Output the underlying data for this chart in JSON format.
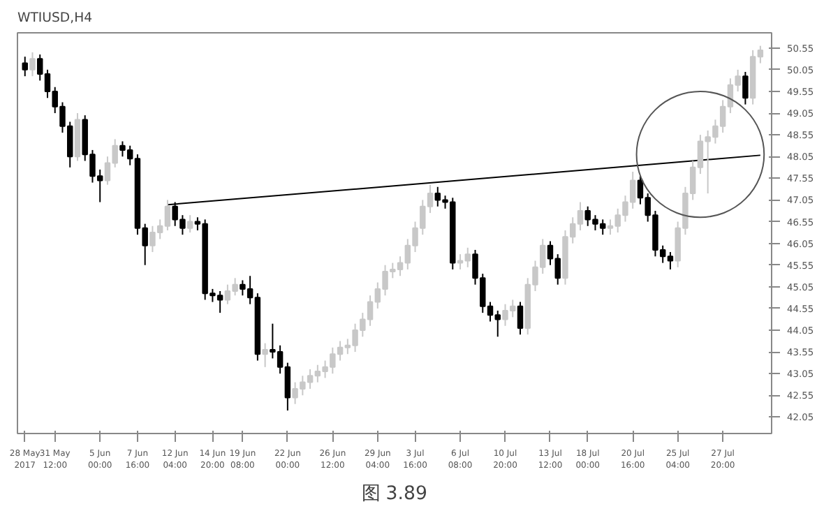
{
  "chart_data": {
    "type": "candlestick",
    "title": "WTIUSD,H4",
    "annotations": [
      "图 3.89"
    ],
    "categories": [
      "28 May 2017",
      null,
      null,
      null,
      "31 May 12:00",
      null,
      null,
      null,
      null,
      null,
      "5 Jun 00:00",
      null,
      null,
      null,
      null,
      "7 Jun 16:00",
      null,
      null,
      null,
      null,
      "12 Jun 04:00",
      null,
      null,
      null,
      null,
      "14 Jun 20:00",
      null,
      null,
      null,
      "19 Jun 08:00",
      null,
      null,
      null,
      null,
      null,
      "22 Jun 00:00",
      null,
      null,
      null,
      null,
      null,
      "26 Jun 12:00",
      null,
      null,
      null,
      null,
      null,
      "29 Jun 04:00",
      null,
      null,
      null,
      null,
      "3 Jul 16:00",
      null,
      null,
      null,
      null,
      null,
      "6 Jul 08:00",
      null,
      null,
      null,
      null,
      null,
      "10 Jul 20:00",
      null,
      null,
      null,
      null,
      null,
      "13 Jul 12:00",
      null,
      null,
      null,
      null,
      "18 Jul 00:00",
      null,
      null,
      null,
      null,
      null,
      "20 Jul 16:00",
      null,
      null,
      null,
      null,
      null,
      "25 Jul 04:00",
      null,
      null,
      null,
      null,
      null,
      "27 Jul 20:00",
      null,
      null,
      null,
      null,
      null
    ],
    "ohlc": [
      [
        50.2,
        50.35,
        49.9,
        50.05
      ],
      [
        50.05,
        50.45,
        49.9,
        50.3
      ],
      [
        50.3,
        50.4,
        49.8,
        49.95
      ],
      [
        49.95,
        50.05,
        49.4,
        49.55
      ],
      [
        49.55,
        49.65,
        49.05,
        49.2
      ],
      [
        49.2,
        49.3,
        48.6,
        48.75
      ],
      [
        48.75,
        48.85,
        47.8,
        48.05
      ],
      [
        48.05,
        49.05,
        47.95,
        48.9
      ],
      [
        48.9,
        49.0,
        47.95,
        48.1
      ],
      [
        48.1,
        48.2,
        47.45,
        47.6
      ],
      [
        47.6,
        47.75,
        47.0,
        47.5
      ],
      [
        47.5,
        48.05,
        47.4,
        47.9
      ],
      [
        47.9,
        48.45,
        47.8,
        48.3
      ],
      [
        48.3,
        48.4,
        48.05,
        48.2
      ],
      [
        48.2,
        48.3,
        47.85,
        48.0
      ],
      [
        48.0,
        48.1,
        46.25,
        46.4
      ],
      [
        46.4,
        46.5,
        45.55,
        46.0
      ],
      [
        46.0,
        46.45,
        45.85,
        46.3
      ],
      [
        46.3,
        46.6,
        46.15,
        46.45
      ],
      [
        46.45,
        47.05,
        46.35,
        46.9
      ],
      [
        46.9,
        47.0,
        46.45,
        46.6
      ],
      [
        46.6,
        46.7,
        46.25,
        46.4
      ],
      [
        46.4,
        46.7,
        46.3,
        46.55
      ],
      [
        46.55,
        46.65,
        46.35,
        46.5
      ],
      [
        46.5,
        46.6,
        44.75,
        44.9
      ],
      [
        44.9,
        45.0,
        44.7,
        44.85
      ],
      [
        44.85,
        44.95,
        44.45,
        44.75
      ],
      [
        44.75,
        45.1,
        44.65,
        44.95
      ],
      [
        44.95,
        45.25,
        44.85,
        45.1
      ],
      [
        45.1,
        45.2,
        44.85,
        45.0
      ],
      [
        45.0,
        45.3,
        44.65,
        44.8
      ],
      [
        44.8,
        44.9,
        43.35,
        43.5
      ],
      [
        43.5,
        43.75,
        43.2,
        43.6
      ],
      [
        43.6,
        44.2,
        43.4,
        43.55
      ],
      [
        43.55,
        43.7,
        43.05,
        43.2
      ],
      [
        43.2,
        43.3,
        42.2,
        42.5
      ],
      [
        42.5,
        42.85,
        42.35,
        42.7
      ],
      [
        42.7,
        43.0,
        42.55,
        42.85
      ],
      [
        42.85,
        43.15,
        42.7,
        43.0
      ],
      [
        43.0,
        43.25,
        42.85,
        43.1
      ],
      [
        43.1,
        43.35,
        42.95,
        43.2
      ],
      [
        43.2,
        43.65,
        43.05,
        43.5
      ],
      [
        43.5,
        43.8,
        43.35,
        43.65
      ],
      [
        43.65,
        43.85,
        43.5,
        43.7
      ],
      [
        43.7,
        44.2,
        43.55,
        44.05
      ],
      [
        44.05,
        44.45,
        43.9,
        44.3
      ],
      [
        44.3,
        44.85,
        44.15,
        44.7
      ],
      [
        44.7,
        45.15,
        44.55,
        45.0
      ],
      [
        45.0,
        45.55,
        44.85,
        45.4
      ],
      [
        45.4,
        45.6,
        45.25,
        45.45
      ],
      [
        45.45,
        45.75,
        45.3,
        45.6
      ],
      [
        45.6,
        46.15,
        45.45,
        46.0
      ],
      [
        46.0,
        46.55,
        45.85,
        46.4
      ],
      [
        46.4,
        47.05,
        46.25,
        46.9
      ],
      [
        46.9,
        47.4,
        46.75,
        47.2
      ],
      [
        47.2,
        47.35,
        46.9,
        47.05
      ],
      [
        47.05,
        47.15,
        46.85,
        47.0
      ],
      [
        47.0,
        47.1,
        45.45,
        45.6
      ],
      [
        45.6,
        45.8,
        45.45,
        45.65
      ],
      [
        45.65,
        45.95,
        45.5,
        45.8
      ],
      [
        45.8,
        45.9,
        45.1,
        45.25
      ],
      [
        45.25,
        45.35,
        44.45,
        44.6
      ],
      [
        44.6,
        44.7,
        44.25,
        44.4
      ],
      [
        44.4,
        44.5,
        43.9,
        44.3
      ],
      [
        44.3,
        44.65,
        44.15,
        44.5
      ],
      [
        44.5,
        44.75,
        44.35,
        44.6
      ],
      [
        44.6,
        44.7,
        43.95,
        44.1
      ],
      [
        44.1,
        45.25,
        43.95,
        45.1
      ],
      [
        45.1,
        45.65,
        44.95,
        45.5
      ],
      [
        45.5,
        46.15,
        45.35,
        46.0
      ],
      [
        46.0,
        46.1,
        45.55,
        45.7
      ],
      [
        45.7,
        45.8,
        45.1,
        45.25
      ],
      [
        45.25,
        46.35,
        45.1,
        46.2
      ],
      [
        46.2,
        46.65,
        46.05,
        46.5
      ],
      [
        46.5,
        47.0,
        46.35,
        46.8
      ],
      [
        46.8,
        46.9,
        46.45,
        46.6
      ],
      [
        46.6,
        46.7,
        46.35,
        46.5
      ],
      [
        46.5,
        46.6,
        46.25,
        46.4
      ],
      [
        46.4,
        46.6,
        46.25,
        46.45
      ],
      [
        46.45,
        46.85,
        46.3,
        46.7
      ],
      [
        46.7,
        47.15,
        46.55,
        47.0
      ],
      [
        47.0,
        47.7,
        46.85,
        47.5
      ],
      [
        47.5,
        47.6,
        46.95,
        47.1
      ],
      [
        47.1,
        47.2,
        46.55,
        46.7
      ],
      [
        46.7,
        46.8,
        45.75,
        45.9
      ],
      [
        45.9,
        46.0,
        45.6,
        45.75
      ],
      [
        45.75,
        45.85,
        45.45,
        45.65
      ],
      [
        45.65,
        46.55,
        45.5,
        46.4
      ],
      [
        46.4,
        47.35,
        46.25,
        47.2
      ],
      [
        47.2,
        47.95,
        47.05,
        47.8
      ],
      [
        47.8,
        48.55,
        47.65,
        48.4
      ],
      [
        48.4,
        48.65,
        47.2,
        48.5
      ],
      [
        48.5,
        48.9,
        48.35,
        48.75
      ],
      [
        48.75,
        49.35,
        48.6,
        49.2
      ],
      [
        49.2,
        49.85,
        49.05,
        49.7
      ],
      [
        49.7,
        50.05,
        49.55,
        49.9
      ],
      [
        49.9,
        50.0,
        49.25,
        49.4
      ],
      [
        49.4,
        50.5,
        49.25,
        50.35
      ],
      [
        50.35,
        50.6,
        50.2,
        50.5
      ]
    ],
    "colors": [
      "#000000",
      "#c8c8c8",
      "#000000",
      "#000000",
      "#000000",
      "#000000",
      "#000000",
      "#c8c8c8",
      "#000000",
      "#000000",
      "#000000",
      "#c8c8c8",
      "#c8c8c8",
      "#000000",
      "#000000",
      "#000000",
      "#000000",
      "#c8c8c8",
      "#c8c8c8",
      "#c8c8c8",
      "#000000",
      "#000000",
      "#c8c8c8",
      "#000000",
      "#000000",
      "#000000",
      "#000000",
      "#c8c8c8",
      "#c8c8c8",
      "#000000",
      "#000000",
      "#000000",
      "#c8c8c8",
      "#000000",
      "#000000",
      "#000000",
      "#c8c8c8",
      "#c8c8c8",
      "#c8c8c8",
      "#c8c8c8",
      "#c8c8c8",
      "#c8c8c8",
      "#c8c8c8",
      "#c8c8c8",
      "#c8c8c8",
      "#c8c8c8",
      "#c8c8c8",
      "#c8c8c8",
      "#c8c8c8",
      "#c8c8c8",
      "#c8c8c8",
      "#c8c8c8",
      "#c8c8c8",
      "#c8c8c8",
      "#c8c8c8",
      "#000000",
      "#000000",
      "#000000",
      "#c8c8c8",
      "#c8c8c8",
      "#000000",
      "#000000",
      "#000000",
      "#000000",
      "#c8c8c8",
      "#c8c8c8",
      "#000000",
      "#c8c8c8",
      "#c8c8c8",
      "#c8c8c8",
      "#000000",
      "#000000",
      "#c8c8c8",
      "#c8c8c8",
      "#c8c8c8",
      "#000000",
      "#000000",
      "#000000",
      "#c8c8c8",
      "#c8c8c8",
      "#c8c8c8",
      "#c8c8c8",
      "#000000",
      "#000000",
      "#000000",
      "#000000",
      "#000000",
      "#c8c8c8",
      "#c8c8c8",
      "#c8c8c8",
      "#c8c8c8",
      "#c8c8c8",
      "#c8c8c8",
      "#c8c8c8",
      "#c8c8c8",
      "#c8c8c8",
      "#000000",
      "#c8c8c8",
      "#c8c8c8"
    ],
    "series": [
      {
        "type": "line",
        "color": "#000000",
        "values": [
          null,
          null,
          null,
          null,
          null,
          null,
          null,
          null,
          null,
          null,
          null,
          null,
          null,
          null,
          null,
          null,
          null,
          null,
          null,
          46.94,
          null,
          null,
          null,
          null,
          null,
          null,
          null,
          null,
          null,
          null,
          null,
          null,
          null,
          null,
          null,
          null,
          null,
          null,
          null,
          null,
          null,
          null,
          null,
          null,
          null,
          null,
          null,
          null,
          null,
          null,
          null,
          null,
          null,
          null,
          null,
          null,
          null,
          null,
          null,
          null,
          null,
          null,
          null,
          null,
          null,
          null,
          null,
          null,
          null,
          null,
          null,
          null,
          null,
          null,
          null,
          null,
          null,
          null,
          null,
          null,
          null,
          null,
          null,
          null,
          null,
          null,
          null,
          null,
          null,
          null,
          null,
          null,
          null,
          null,
          null,
          null,
          null,
          null,
          48.08
        ]
      }
    ],
    "ylim": [
      41.67,
      50.9
    ],
    "yticks": [
      42.05,
      42.55,
      43.05,
      43.55,
      44.05,
      44.55,
      45.05,
      45.55,
      46.05,
      46.55,
      47.05,
      47.55,
      48.05,
      48.55,
      49.05,
      49.55,
      50.05,
      50.55
    ],
    "grid": false
  }
}
